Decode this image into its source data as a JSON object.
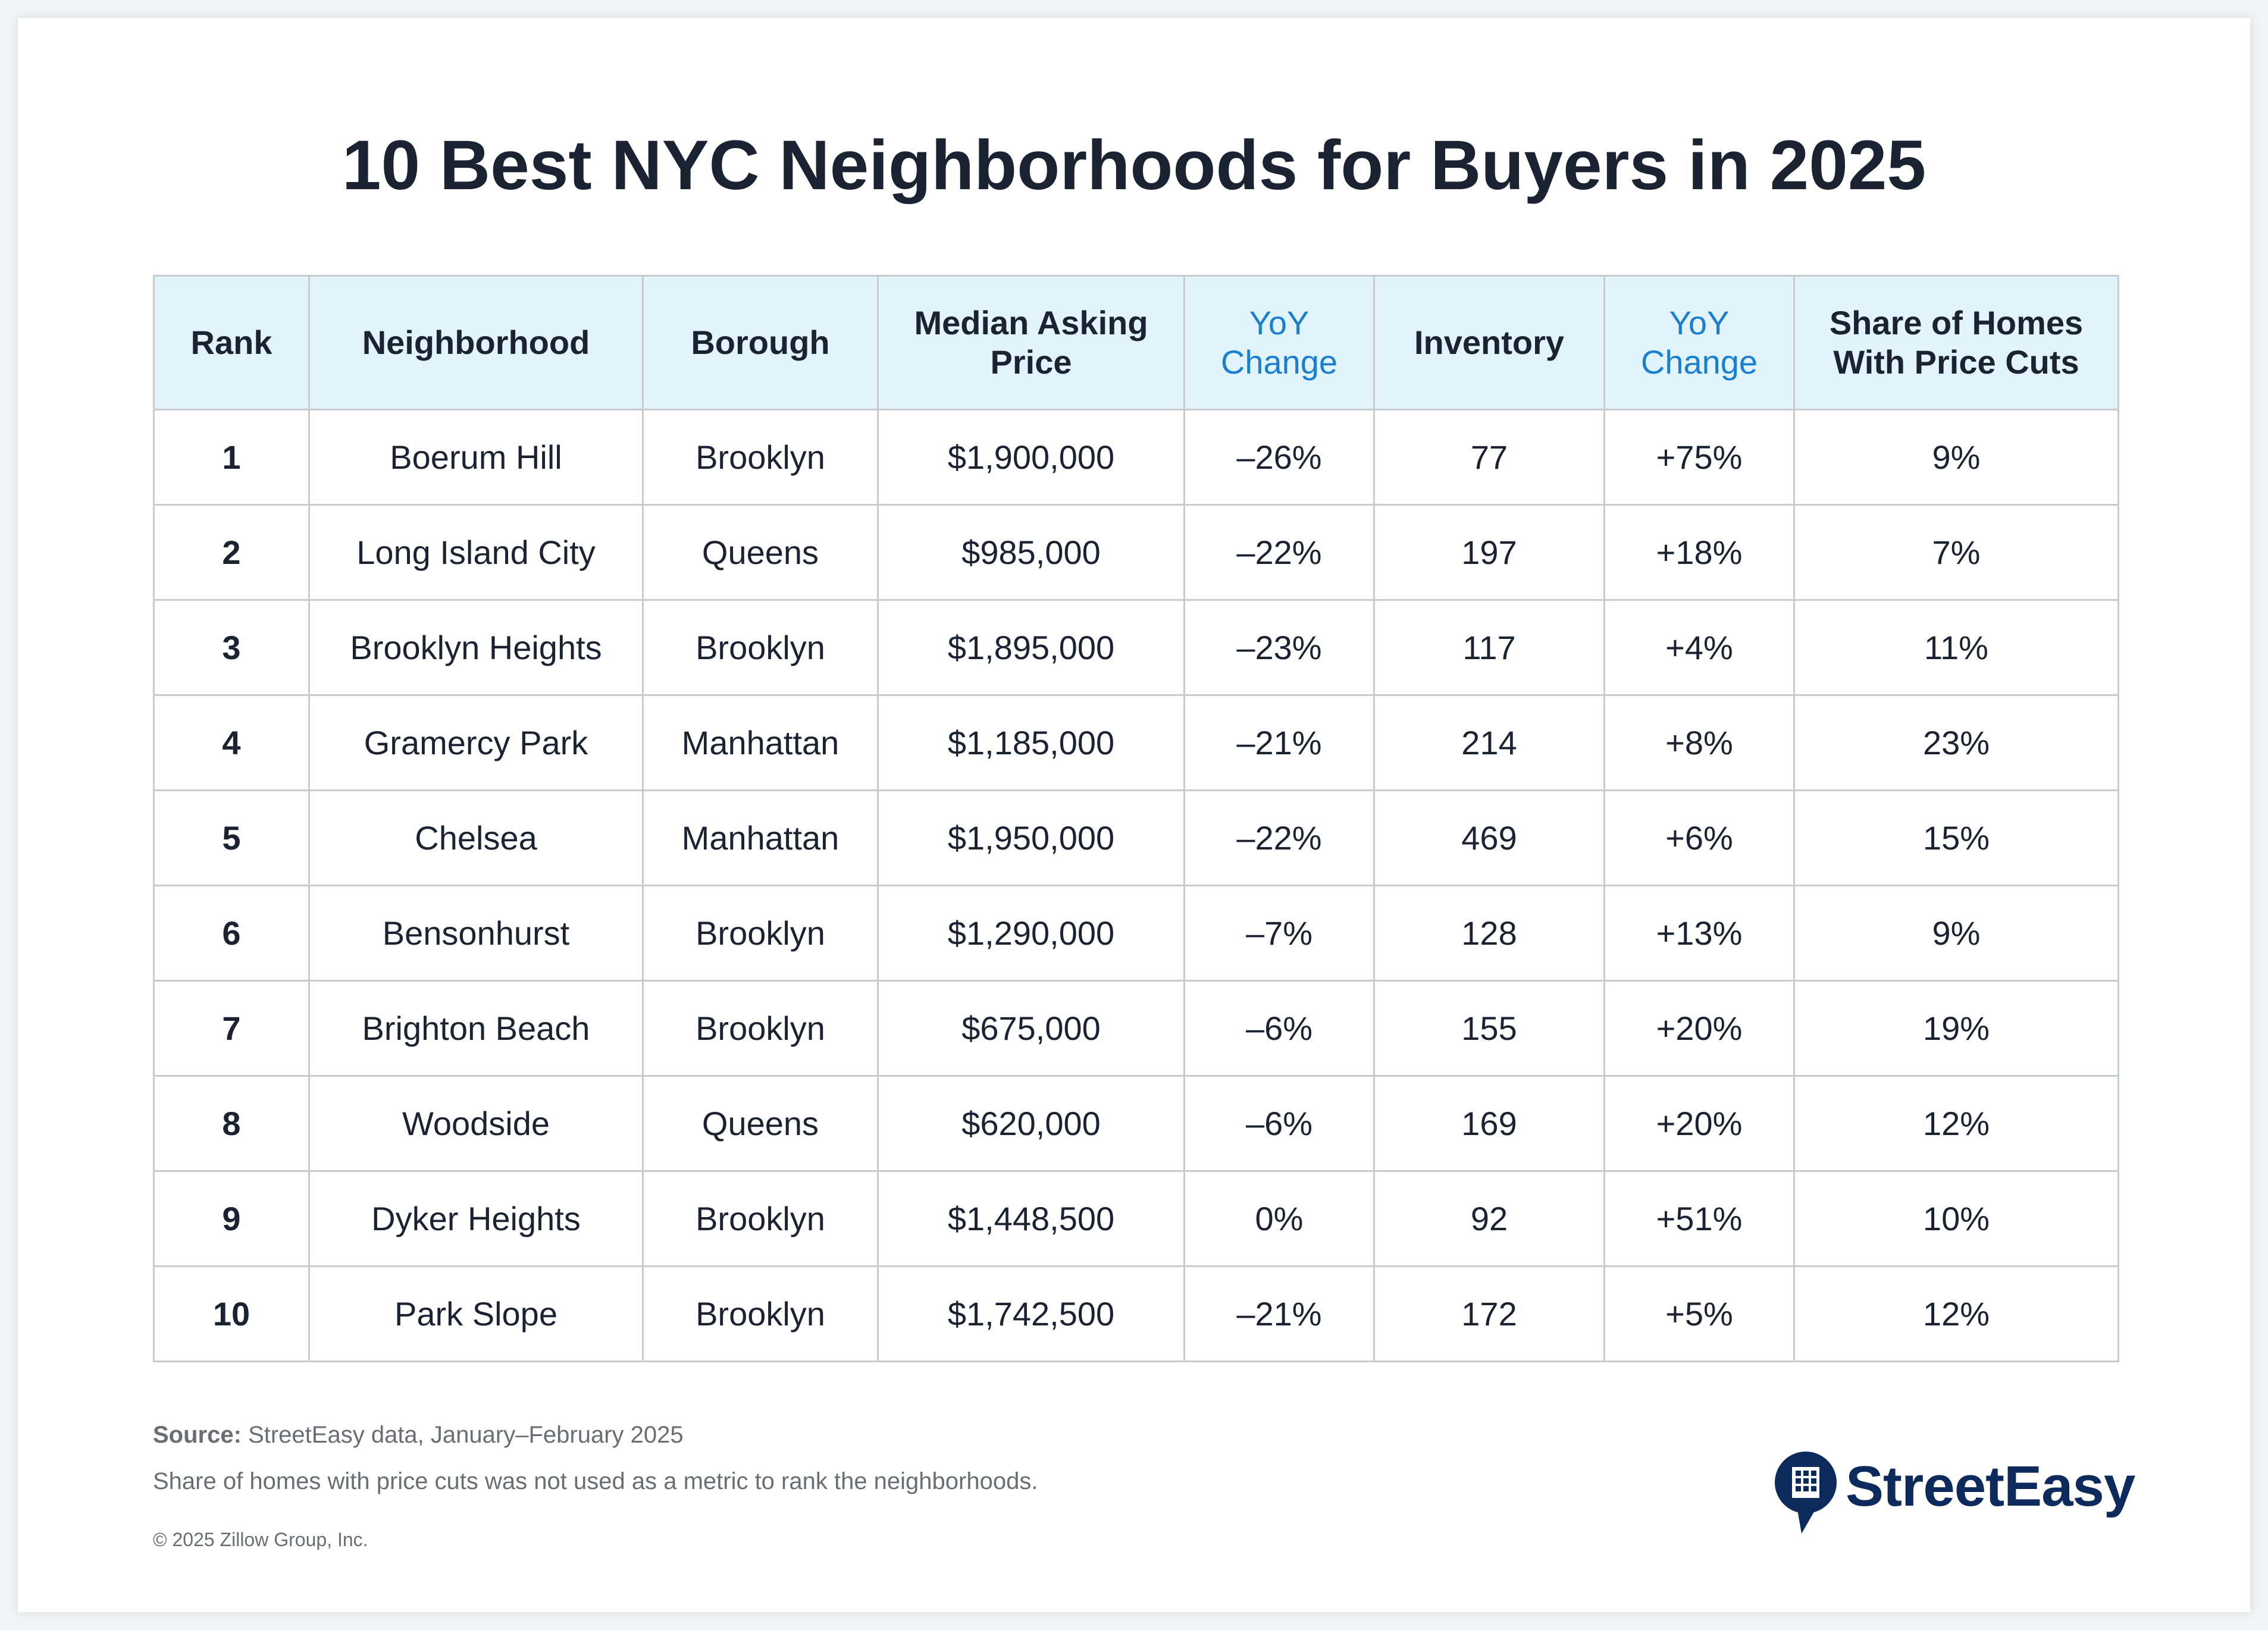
{
  "title": "10 Best NYC Neighborhoods for Buyers in 2025",
  "table": {
    "headers": [
      {
        "label": "Rank",
        "highlight": false
      },
      {
        "label": "Neighborhood",
        "highlight": false
      },
      {
        "label": "Borough",
        "highlight": false
      },
      {
        "label": "Median Asking Price",
        "highlight": false
      },
      {
        "label": "YoY Change",
        "highlight": true
      },
      {
        "label": "Inventory",
        "highlight": false
      },
      {
        "label": "YoY Change",
        "highlight": true
      },
      {
        "label": "Share of Homes With Price Cuts",
        "highlight": false
      }
    ],
    "rows": [
      [
        "1",
        "Boerum Hill",
        "Brooklyn",
        "$1,900,000",
        "–26%",
        "77",
        "+75%",
        "9%"
      ],
      [
        "2",
        "Long Island City",
        "Queens",
        "$985,000",
        "–22%",
        "197",
        "+18%",
        "7%"
      ],
      [
        "3",
        "Brooklyn Heights",
        "Brooklyn",
        "$1,895,000",
        "–23%",
        "117",
        "+4%",
        "11%"
      ],
      [
        "4",
        "Gramercy Park",
        "Manhattan",
        "$1,185,000",
        "–21%",
        "214",
        "+8%",
        "23%"
      ],
      [
        "5",
        "Chelsea",
        "Manhattan",
        "$1,950,000",
        "–22%",
        "469",
        "+6%",
        "15%"
      ],
      [
        "6",
        "Bensonhurst",
        "Brooklyn",
        "$1,290,000",
        "–7%",
        "128",
        "+13%",
        "9%"
      ],
      [
        "7",
        "Brighton Beach",
        "Brooklyn",
        "$675,000",
        "–6%",
        "155",
        "+20%",
        "19%"
      ],
      [
        "8",
        "Woodside",
        "Queens",
        "$620,000",
        "–6%",
        "169",
        "+20%",
        "12%"
      ],
      [
        "9",
        "Dyker Heights",
        "Brooklyn",
        "$1,448,500",
        "0%",
        "92",
        "+51%",
        "10%"
      ],
      [
        "10",
        "Park Slope",
        "Brooklyn",
        "$1,742,500",
        "–21%",
        "172",
        "+5%",
        "12%"
      ]
    ]
  },
  "chart_data": {
    "type": "table",
    "title": "10 Best NYC Neighborhoods for Buyers in 2025",
    "columns": [
      "Rank",
      "Neighborhood",
      "Borough",
      "Median Asking Price",
      "YoY Change",
      "Inventory",
      "YoY Change",
      "Share of Homes With Price Cuts"
    ],
    "rows": [
      [
        1,
        "Boerum Hill",
        "Brooklyn",
        1900000,
        -26,
        77,
        75,
        9
      ],
      [
        2,
        "Long Island City",
        "Queens",
        985000,
        -22,
        197,
        18,
        7
      ],
      [
        3,
        "Brooklyn Heights",
        "Brooklyn",
        1895000,
        -23,
        117,
        4,
        11
      ],
      [
        4,
        "Gramercy Park",
        "Manhattan",
        1185000,
        -21,
        214,
        8,
        23
      ],
      [
        5,
        "Chelsea",
        "Manhattan",
        1950000,
        -22,
        469,
        6,
        15
      ],
      [
        6,
        "Bensonhurst",
        "Brooklyn",
        1290000,
        -7,
        128,
        13,
        9
      ],
      [
        7,
        "Brighton Beach",
        "Brooklyn",
        675000,
        -6,
        155,
        20,
        19
      ],
      [
        8,
        "Woodside",
        "Queens",
        620000,
        -6,
        169,
        20,
        12
      ],
      [
        9,
        "Dyker Heights",
        "Brooklyn",
        1448500,
        0,
        92,
        51,
        10
      ],
      [
        10,
        "Park Slope",
        "Brooklyn",
        1742500,
        -21,
        172,
        5,
        12
      ]
    ]
  },
  "footer": {
    "source_label": "Source:",
    "source_text": "StreetEasy data, January–February 2025",
    "note": "Share of homes with price cuts was not used as a metric to rank the neighborhoods.",
    "copyright": "© 2025 Zillow Group, Inc."
  },
  "logo": {
    "wordmark": "StreetEasy",
    "icon": "building-chat-bubble-icon"
  },
  "colors": {
    "header_bg": "#e1f4fb",
    "highlight_text": "#1a7fd1",
    "body_text": "#1b2333",
    "logo_navy": "#0d2a5c",
    "grid": "#c9cccf"
  }
}
